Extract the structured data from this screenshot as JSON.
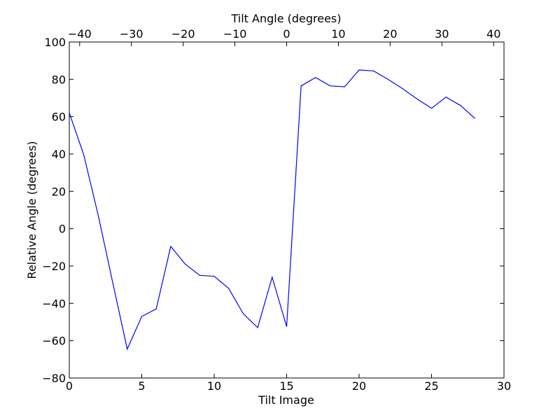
{
  "chart_data": {
    "type": "line",
    "xlabel": "Tilt Image",
    "ylabel": "Relative Angle (degrees)",
    "top_xlabel": "Tilt Angle (degrees)",
    "xlim": [
      0,
      30
    ],
    "ylim": [
      -80,
      100
    ],
    "top_xlim": [
      -42,
      42
    ],
    "x_ticks": [
      0,
      5,
      10,
      15,
      20,
      25,
      30
    ],
    "x_tick_labels": [
      "0",
      "5",
      "10",
      "15",
      "20",
      "25",
      "30"
    ],
    "y_ticks": [
      -80,
      -60,
      -40,
      -20,
      0,
      20,
      40,
      60,
      80,
      100
    ],
    "y_tick_labels": [
      "−80",
      "−60",
      "−40",
      "−20",
      "0",
      "20",
      "40",
      "60",
      "80",
      "100"
    ],
    "top_ticks": [
      -40,
      -30,
      -20,
      -10,
      0,
      10,
      20,
      30,
      40
    ],
    "top_tick_labels": [
      "−40",
      "−30",
      "−20",
      "−10",
      "0",
      "10",
      "20",
      "30",
      "40"
    ],
    "grid": false,
    "series": [
      {
        "color": "#0000ff",
        "x": [
          0,
          1,
          2,
          3,
          4,
          5,
          6,
          7,
          8,
          9,
          10,
          11,
          12,
          13,
          14,
          15,
          16,
          17,
          18,
          19,
          20,
          21,
          22,
          23,
          24,
          25,
          26,
          27,
          28
        ],
        "y": [
          62,
          39.5,
          7,
          -29,
          -64.5,
          -47,
          -43,
          -9.5,
          -19,
          -25,
          -25.5,
          -32,
          -45.5,
          -53,
          -26,
          -52.5,
          76.5,
          81,
          76.5,
          76,
          85,
          84.5,
          80,
          75,
          69.5,
          64.5,
          70.5,
          66,
          59
        ]
      }
    ]
  }
}
